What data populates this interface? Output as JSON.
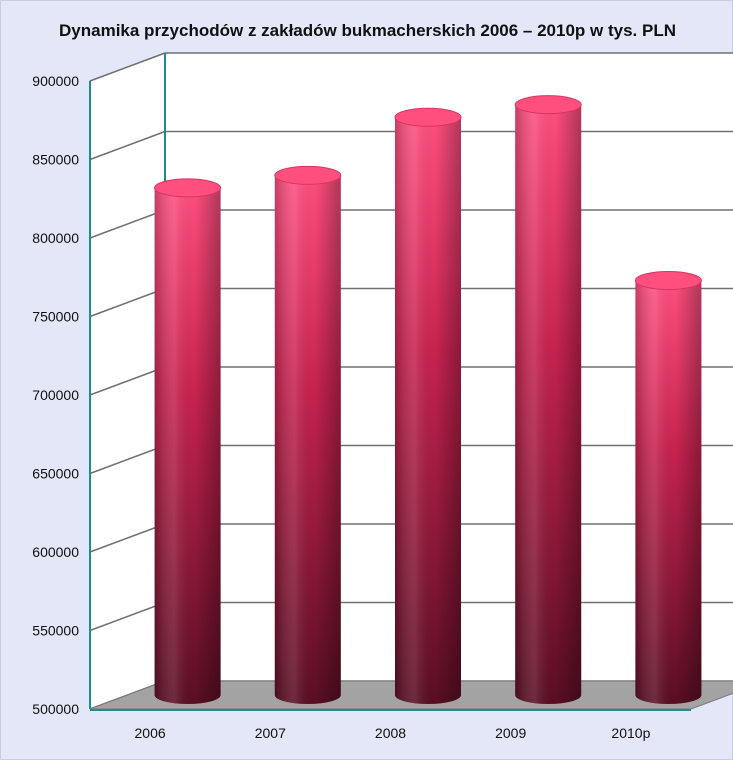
{
  "colors": {
    "background": "#e3e7f7",
    "back_wall": "#ffffff",
    "gridline": "#707070",
    "wall_edge": "#1f8c8c",
    "floor": "#a3a3a3",
    "bar_top": "#ff4f7f",
    "bar_mid": "#c8234f",
    "bar_dark": "#5a0e24"
  },
  "chart_data": {
    "type": "bar",
    "style": "3d-cylinder",
    "title": "Dynamika przychodów z zakładów bukmacherskich 2006 – 2010p w tys. PLN",
    "xlabel": "",
    "ylabel": "",
    "categories": [
      "2006",
      "2007",
      "2008",
      "2009",
      "2010p"
    ],
    "values": [
      823000,
      831000,
      868000,
      876000,
      764000
    ],
    "ylim": [
      500000,
      900000
    ],
    "yticks": [
      "500000",
      "550000",
      "600000",
      "650000",
      "700000",
      "750000",
      "800000",
      "850000",
      "900000"
    ],
    "grid": true,
    "legend": "none"
  }
}
